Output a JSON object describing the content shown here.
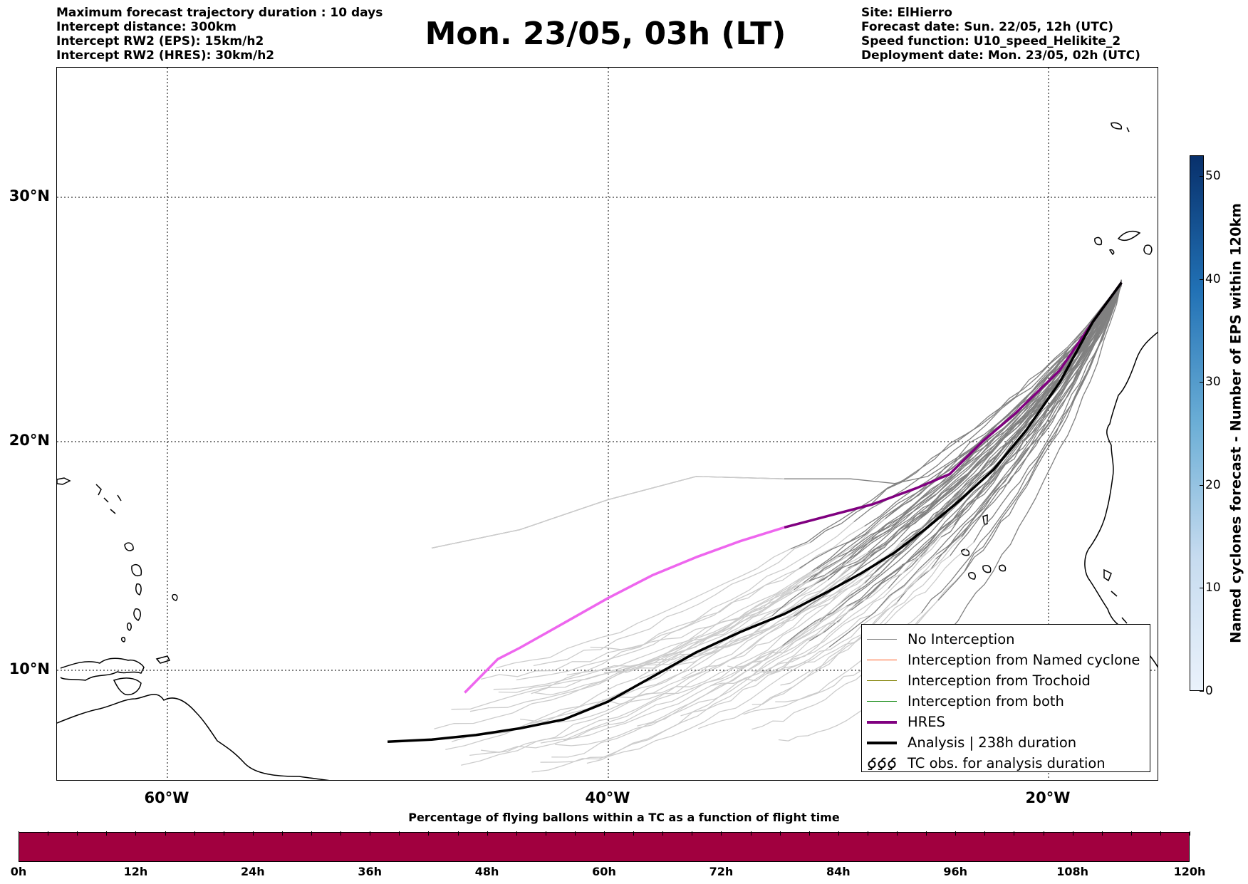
{
  "header": {
    "left_lines": [
      "Maximum forecast trajectory duration : 10 days",
      "Intercept distance: 300km",
      "Intercept RW2 (EPS):  15km/h2",
      "Intercept RW2 (HRES): 30km/h2"
    ],
    "title": "Mon. 23/05, 03h (LT)",
    "right_lines": [
      "Site: ElHierro",
      "Forecast date: Sun. 22/05, 12h (UTC)",
      "Speed function: U10_speed_Helikite_2",
      "Deployment date: Mon. 23/05, 02h (UTC)"
    ]
  },
  "map": {
    "lon_range": [
      -65,
      -15
    ],
    "lat_range": [
      5,
      35
    ],
    "lat_labels": [
      "30°N",
      "20°N",
      "10°N"
    ],
    "lon_labels": [
      "60°W",
      "40°W",
      "20°W"
    ],
    "colors": {
      "no_interception": "#808080",
      "no_interception_early": "#cccccc",
      "named_cyclone": "#ff5a1e",
      "trochoid": "#808000",
      "both": "#008000",
      "hres": "#800080",
      "hres_early": "#ee66ee",
      "analysis": "#000000"
    }
  },
  "legend": {
    "items": [
      {
        "label": "No Interception",
        "color": "#808080",
        "style": "thin"
      },
      {
        "label": "Interception from Named cyclone",
        "color": "#ff5a1e",
        "style": "thin"
      },
      {
        "label": "Interception from Trochoid",
        "color": "#808000",
        "style": "thin"
      },
      {
        "label": "Interception from both",
        "color": "#008000",
        "style": "thin"
      },
      {
        "label": "HRES",
        "color": "#800080",
        "style": "thick"
      },
      {
        "label": "Analysis | 238h duration",
        "color": "#000000",
        "style": "thick"
      },
      {
        "label": "TC obs. for analysis duration",
        "color": "#000000",
        "style": "symbol",
        "symbol": "ᴳᴳᴳ"
      }
    ]
  },
  "colorbar": {
    "label": "Named cyclones forecast - Number of EPS within 120km",
    "ticks": [
      "0",
      "10",
      "20",
      "30",
      "40",
      "50"
    ],
    "range": [
      0,
      52
    ]
  },
  "hbar": {
    "title": "Percentage of flying ballons within a TC as a function of flight time",
    "tick_labels": [
      "0h",
      "12h",
      "24h",
      "36h",
      "48h",
      "60h",
      "72h",
      "84h",
      "96h",
      "108h",
      "120h"
    ],
    "color": "#a1003f"
  }
}
